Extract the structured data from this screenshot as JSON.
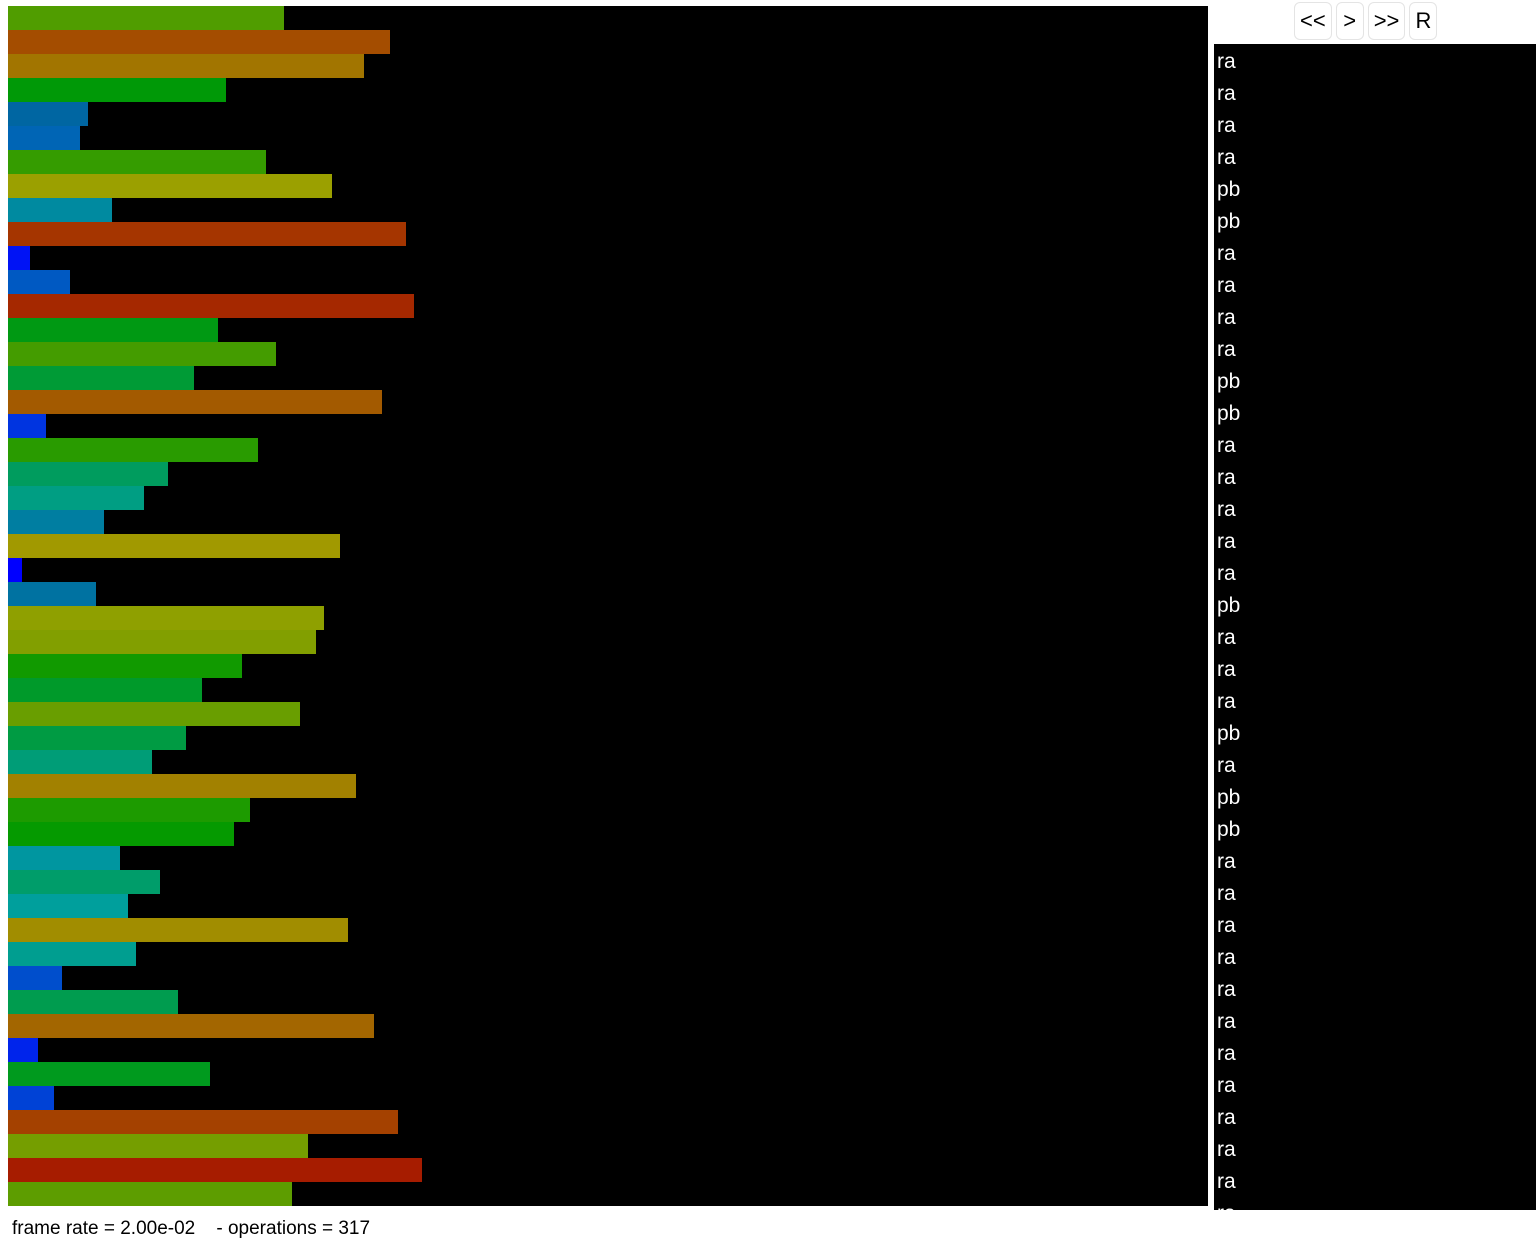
{
  "visualizer": {
    "type": "bar",
    "orientation": "horizontal",
    "values": [
      276,
      382,
      356,
      218,
      80,
      72,
      258,
      324,
      104,
      398,
      22,
      62,
      406,
      210,
      268,
      186,
      374,
      38,
      250,
      160,
      136,
      96,
      332,
      14,
      88,
      316,
      308,
      234,
      194,
      292,
      178,
      144,
      348,
      242,
      226,
      112,
      152,
      120,
      340,
      128,
      54,
      170,
      366,
      30,
      202,
      46,
      390,
      300,
      414,
      284
    ],
    "xlim": [
      0,
      1200
    ]
  },
  "controls": {
    "buttons": [
      "<<",
      ">",
      ">>",
      "R"
    ]
  },
  "operations": [
    "ra",
    "ra",
    "ra",
    "ra",
    "pb",
    "pb",
    "ra",
    "ra",
    "ra",
    "ra",
    "pb",
    "pb",
    "ra",
    "ra",
    "ra",
    "ra",
    "ra",
    "pb",
    "ra",
    "ra",
    "ra",
    "pb",
    "ra",
    "pb",
    "pb",
    "ra",
    "ra",
    "ra",
    "ra",
    "ra",
    "ra",
    "ra",
    "ra",
    "ra",
    "ra",
    "ra",
    "ra"
  ],
  "footer": {
    "frame_rate": "frame rate = 2.00e-02",
    "operations": "- operations = 317"
  }
}
